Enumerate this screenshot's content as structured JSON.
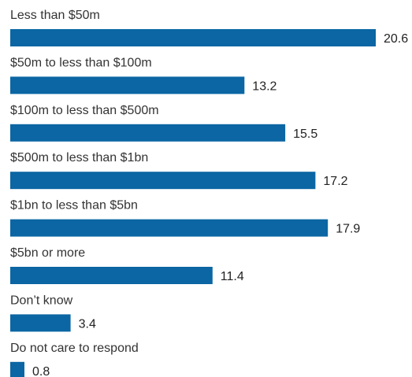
{
  "chart_data": {
    "type": "bar",
    "orientation": "horizontal",
    "categories": [
      "Less than $50m",
      "$50m to less than $100m",
      "$100m to less than $500m",
      "$500m to less than $1bn",
      "$1bn to less than $5bn",
      "$5bn or more",
      "Don’t know",
      "Do not care to respond"
    ],
    "values": [
      20.6,
      13.2,
      15.5,
      17.2,
      17.9,
      11.4,
      3.4,
      0.8
    ],
    "value_labels": [
      "20.6",
      "13.2",
      "15.5",
      "17.2",
      "17.9",
      "11.4",
      "3.4",
      "0.8"
    ],
    "xlim": [
      0,
      20.6
    ],
    "grid": false,
    "legend": "none",
    "bar_color": "#0b66a3"
  }
}
